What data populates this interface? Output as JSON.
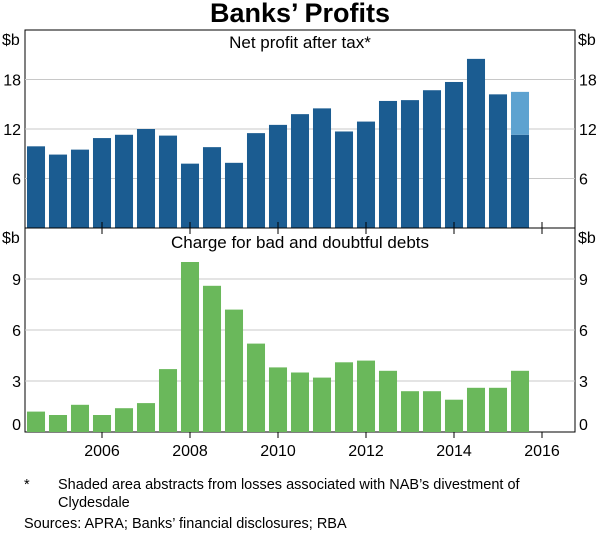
{
  "title": "Banks’ Profits",
  "unit_label": "$b",
  "footnote": {
    "marker": "*",
    "text": "Shaded area abstracts from losses associated with NAB’s divestment of Clydesdale"
  },
  "sources": "Sources:   APRA; Banks’ financial disclosures; RBA",
  "chart_data": [
    {
      "type": "bar",
      "title": "Net profit after tax*",
      "ylabel": "$b",
      "ylim": [
        0,
        24
      ],
      "yticks": [
        6,
        12,
        18
      ],
      "color": "#1b5c91",
      "shade_color": "#5da2d0",
      "x": [
        2004.5,
        2005.0,
        2005.5,
        2006.0,
        2006.5,
        2007.0,
        2007.5,
        2008.0,
        2008.5,
        2009.0,
        2009.5,
        2010.0,
        2010.5,
        2011.0,
        2011.5,
        2012.0,
        2012.5,
        2013.0,
        2013.5,
        2014.0,
        2014.5,
        2015.0,
        2015.5
      ],
      "values": [
        9.9,
        8.9,
        9.5,
        10.9,
        11.3,
        12.0,
        11.2,
        7.8,
        9.8,
        7.9,
        11.5,
        12.5,
        13.8,
        14.5,
        11.7,
        12.9,
        15.4,
        15.5,
        16.7,
        17.7,
        20.5,
        16.2,
        11.3
      ],
      "shaded_extra": [
        0,
        0,
        0,
        0,
        0,
        0,
        0,
        0,
        0,
        0,
        0,
        0,
        0,
        0,
        0,
        0,
        0,
        0,
        0,
        0,
        0,
        0,
        5.2
      ]
    },
    {
      "type": "bar",
      "title": "Charge for bad and doubtful debts",
      "ylabel": "$b",
      "ylim": [
        0,
        12
      ],
      "yticks": [
        0,
        3,
        6,
        9
      ],
      "color": "#6ab85b",
      "x": [
        2004.5,
        2005.0,
        2005.5,
        2006.0,
        2006.5,
        2007.0,
        2007.5,
        2008.0,
        2008.5,
        2009.0,
        2009.5,
        2010.0,
        2010.5,
        2011.0,
        2011.5,
        2012.0,
        2012.5,
        2013.0,
        2013.5,
        2014.0,
        2014.5,
        2015.0,
        2015.5
      ],
      "values": [
        1.2,
        1.0,
        1.6,
        1.0,
        1.4,
        1.7,
        3.7,
        10.0,
        8.6,
        7.2,
        5.2,
        3.8,
        3.5,
        3.2,
        4.1,
        4.2,
        3.6,
        2.4,
        2.4,
        1.9,
        2.6,
        2.6,
        3.6
      ]
    }
  ],
  "xaxis": {
    "tick_labels": [
      "2006",
      "2008",
      "2010",
      "2012",
      "2014",
      "2016"
    ],
    "tick_values": [
      2006,
      2008,
      2010,
      2012,
      2014,
      2016
    ],
    "range": [
      2004.25,
      2016.75
    ]
  }
}
